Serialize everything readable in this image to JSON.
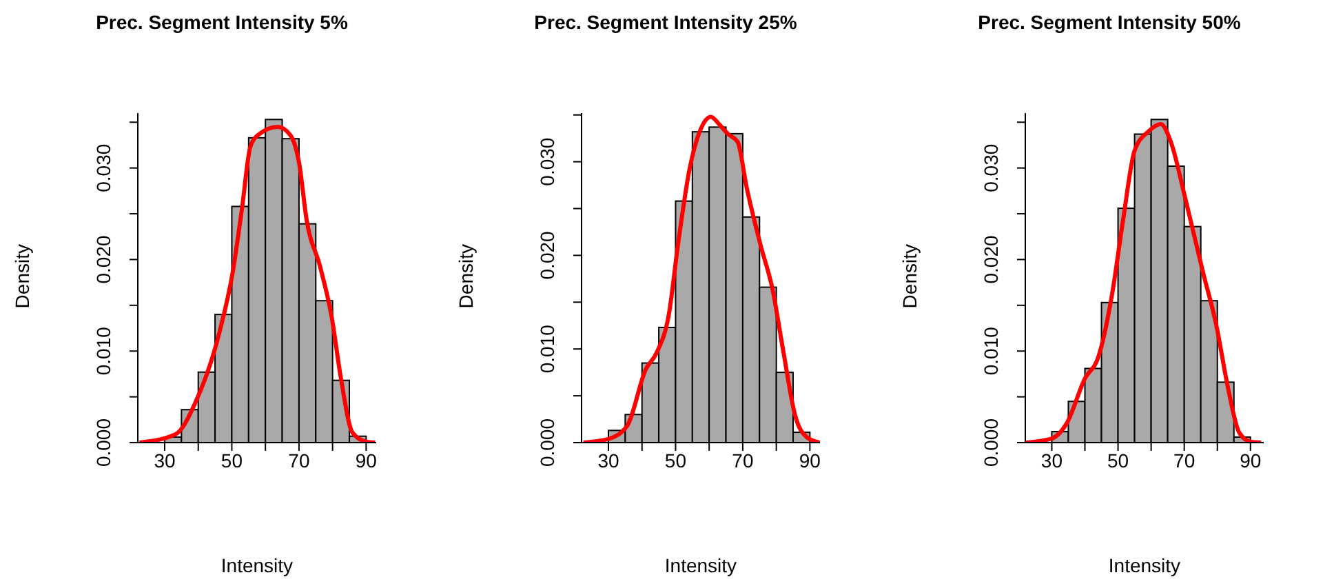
{
  "chart_data": [
    {
      "type": "histogram",
      "title": "Prec. Segment Intensity 5%",
      "xlabel": "Intensity",
      "ylabel": "Density",
      "bins": [
        30,
        35,
        40,
        45,
        50,
        55,
        60,
        65,
        70,
        75,
        80,
        85,
        90
      ],
      "values": [
        0.0006,
        0.0036,
        0.0077,
        0.014,
        0.0258,
        0.0333,
        0.0353,
        0.0332,
        0.0239,
        0.0155,
        0.0068,
        0.0007
      ],
      "color": "#a9a9a9",
      "series": [
        {
          "type": "line",
          "color": "#ff0000",
          "x": [
            22.5,
            33.2,
            39.3,
            46.2,
            50.3,
            53,
            55.5,
            57.8,
            63.7,
            67.4,
            70.1,
            72.2,
            76.3,
            79.7,
            82.5,
            85.9,
            90,
            92.7
          ],
          "values": [
            0,
            0.0009,
            0.0045,
            0.0119,
            0.0187,
            0.0255,
            0.0323,
            0.0336,
            0.0345,
            0.0336,
            0.0304,
            0.0245,
            0.0192,
            0.0138,
            0.007,
            0.0011,
            0.0001,
            0
          ]
        }
      ],
      "xlim": [
        22,
        93
      ],
      "ylim": [
        0,
        0.036
      ],
      "xticks": [
        30,
        {
          "value": 40,
          "label": null
        },
        50,
        {
          "value": 60,
          "label": null
        },
        70,
        {
          "value": 80,
          "label": null
        },
        90
      ],
      "yticks": [
        {
          "value": 0,
          "label": "0.000"
        },
        {
          "value": 0.005,
          "label": null
        },
        {
          "value": 0.01,
          "label": "0.010"
        },
        {
          "value": 0.015,
          "label": null
        },
        {
          "value": 0.02,
          "label": "0.020"
        },
        {
          "value": 0.025,
          "label": null
        },
        {
          "value": 0.03,
          "label": "0.030"
        },
        {
          "value": 0.035,
          "label": null
        }
      ]
    },
    {
      "type": "histogram",
      "title": "Prec. Segment Intensity 25%",
      "xlabel": "Intensity",
      "ylabel": "Density",
      "bins": [
        30,
        35,
        40,
        45,
        50,
        55,
        60,
        65,
        70,
        75,
        80,
        85,
        90
      ],
      "values": [
        0.0013,
        0.003,
        0.0085,
        0.0123,
        0.0258,
        0.0332,
        0.0337,
        0.033,
        0.0241,
        0.0166,
        0.0075,
        0.0011
      ],
      "color": "#a9a9a9",
      "series": [
        {
          "type": "line",
          "color": "#ff0000",
          "x": [
            22.6,
            30.1,
            35.6,
            41.1,
            44.5,
            48,
            50.7,
            54.1,
            57.5,
            60.5,
            63,
            65.5,
            68.5,
            71.2,
            75.3,
            78.8,
            82.2,
            85.6,
            89,
            92.9
          ],
          "values": [
            0,
            0.0004,
            0.0018,
            0.0078,
            0.0097,
            0.0137,
            0.0211,
            0.0291,
            0.0335,
            0.0348,
            0.034,
            0.033,
            0.0321,
            0.0272,
            0.0211,
            0.0165,
            0.0095,
            0.0029,
            0.0006,
            0
          ]
        }
      ],
      "xlim": [
        22,
        93
      ],
      "ylim": [
        0,
        0.0352
      ],
      "xticks": [
        30,
        {
          "value": 40,
          "label": null
        },
        50,
        {
          "value": 60,
          "label": null
        },
        70,
        {
          "value": 80,
          "label": null
        },
        90
      ],
      "yticks": [
        {
          "value": 0,
          "label": "0.000"
        },
        {
          "value": 0.005,
          "label": null
        },
        {
          "value": 0.01,
          "label": "0.010"
        },
        {
          "value": 0.015,
          "label": null
        },
        {
          "value": 0.02,
          "label": "0.020"
        },
        {
          "value": 0.025,
          "label": null
        },
        {
          "value": 0.03,
          "label": "0.030"
        },
        {
          "value": 0.035,
          "label": null
        }
      ]
    },
    {
      "type": "histogram",
      "title": "Prec. Segment Intensity 50%",
      "xlabel": "Intensity",
      "ylabel": "Density",
      "bins": [
        30,
        35,
        40,
        45,
        50,
        55,
        60,
        65,
        70,
        75,
        80,
        85,
        90
      ],
      "values": [
        0.0012,
        0.0045,
        0.0081,
        0.0153,
        0.0256,
        0.0337,
        0.0353,
        0.0302,
        0.0236,
        0.0155,
        0.0066,
        0.0006
      ],
      "color": "#a9a9a9",
      "series": [
        {
          "type": "line",
          "color": "#ff0000",
          "x": [
            22.2,
            29.7,
            34.5,
            40,
            44.1,
            48.2,
            51.6,
            55,
            59.2,
            62.9,
            66,
            70.1,
            75.6,
            79.7,
            83.2,
            86.6,
            90,
            93.2
          ],
          "values": [
            0,
            0.0004,
            0.0021,
            0.007,
            0.0094,
            0.0162,
            0.0245,
            0.0319,
            0.034,
            0.0348,
            0.0328,
            0.027,
            0.0187,
            0.0128,
            0.006,
            0.0011,
            0.0001,
            0
          ]
        }
      ],
      "xlim": [
        22,
        94
      ],
      "ylim": [
        0,
        0.036
      ],
      "xticks": [
        30,
        {
          "value": 40,
          "label": null
        },
        50,
        {
          "value": 60,
          "label": null
        },
        70,
        {
          "value": 80,
          "label": null
        },
        90
      ],
      "yticks": [
        {
          "value": 0,
          "label": "0.000"
        },
        {
          "value": 0.005,
          "label": null
        },
        {
          "value": 0.01,
          "label": "0.010"
        },
        {
          "value": 0.015,
          "label": null
        },
        {
          "value": 0.02,
          "label": "0.020"
        },
        {
          "value": 0.025,
          "label": null
        },
        {
          "value": 0.03,
          "label": "0.030"
        },
        {
          "value": 0.035,
          "label": null
        }
      ]
    }
  ]
}
